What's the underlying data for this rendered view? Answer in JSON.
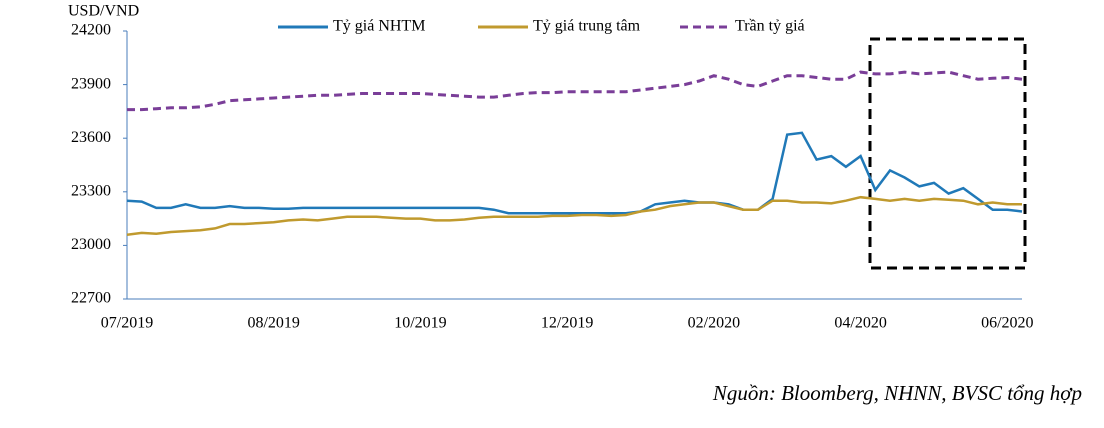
{
  "chart_data": {
    "type": "line",
    "y_label": "USD/VND",
    "source": "Nguồn: Bloomberg, NHNN, BVSC tổng hợp",
    "categories": [
      "07/2019",
      null,
      null,
      null,
      null,
      null,
      null,
      null,
      null,
      null,
      "08/2019",
      null,
      null,
      null,
      null,
      null,
      null,
      null,
      null,
      null,
      "10/2019",
      null,
      null,
      null,
      null,
      null,
      null,
      null,
      null,
      null,
      "12/2019",
      null,
      null,
      null,
      null,
      null,
      null,
      null,
      null,
      null,
      "02/2020",
      null,
      null,
      null,
      null,
      null,
      null,
      null,
      null,
      null,
      "04/2020",
      null,
      null,
      null,
      null,
      null,
      null,
      null,
      null,
      null,
      "06/2020",
      null
    ],
    "ylim": [
      22700,
      24200
    ],
    "yticks": [
      22700,
      23000,
      23300,
      23600,
      23900,
      24200
    ],
    "series": [
      {
        "name": "Tỷ giá NHTM",
        "color": "#2079b8",
        "line_style": "solid",
        "values": [
          23250,
          23245,
          23210,
          23210,
          23230,
          23210,
          23210,
          23220,
          23210,
          23210,
          23205,
          23205,
          23210,
          23210,
          23210,
          23210,
          23210,
          23210,
          23210,
          23210,
          23210,
          23210,
          23210,
          23210,
          23210,
          23200,
          23180,
          23180,
          23180,
          23180,
          23180,
          23180,
          23180,
          23180,
          23180,
          23190,
          23230,
          23240,
          23250,
          23240,
          23240,
          23230,
          23200,
          23200,
          23260,
          23620,
          23630,
          23480,
          23500,
          23440,
          23500,
          23310,
          23420,
          23380,
          23330,
          23350,
          23290,
          23320,
          23260,
          23200,
          23200,
          23190
        ]
      },
      {
        "name": "Tỷ giá trung tâm",
        "color": "#c09a2e",
        "line_style": "solid",
        "values": [
          23060,
          23070,
          23065,
          23075,
          23080,
          23085,
          23095,
          23120,
          23120,
          23125,
          23130,
          23140,
          23145,
          23140,
          23150,
          23160,
          23160,
          23160,
          23155,
          23150,
          23150,
          23140,
          23140,
          23145,
          23155,
          23160,
          23160,
          23160,
          23160,
          23165,
          23165,
          23170,
          23170,
          23165,
          23170,
          23190,
          23200,
          23220,
          23230,
          23240,
          23240,
          23220,
          23200,
          23200,
          23250,
          23250,
          23240,
          23240,
          23235,
          23250,
          23270,
          23260,
          23250,
          23260,
          23250,
          23260,
          23255,
          23250,
          23230,
          23240,
          23230,
          23230
        ]
      },
      {
        "name": "Trần tỷ giá",
        "color": "#7a3e98",
        "line_style": "dashed",
        "values": [
          23760,
          23760,
          23765,
          23770,
          23770,
          23775,
          23790,
          23810,
          23815,
          23820,
          23825,
          23830,
          23835,
          23840,
          23840,
          23845,
          23850,
          23850,
          23850,
          23850,
          23850,
          23845,
          23840,
          23835,
          23830,
          23830,
          23840,
          23850,
          23855,
          23855,
          23860,
          23860,
          23860,
          23860,
          23860,
          23870,
          23880,
          23890,
          23900,
          23920,
          23950,
          23930,
          23900,
          23890,
          23920,
          23950,
          23950,
          23940,
          23930,
          23930,
          23970,
          23960,
          23960,
          23970,
          23960,
          23965,
          23970,
          23950,
          23930,
          23935,
          23940,
          23930
        ]
      }
    ]
  }
}
